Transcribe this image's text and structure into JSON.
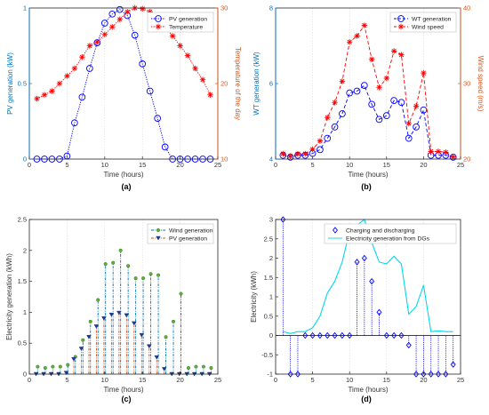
{
  "chart_data": [
    {
      "type": "line",
      "panel": "(a)",
      "xlabel": "Time (hours)",
      "xlim": [
        0,
        25
      ],
      "xticks": [
        0,
        5,
        10,
        15,
        20,
        25
      ],
      "ylabel_left": "PV generation (kW)",
      "ylim_left": [
        0,
        1
      ],
      "yticks_left": [
        0,
        0.5,
        1
      ],
      "ylabel_right": "Temperature of the day",
      "ylim_right": [
        10,
        30
      ],
      "yticks_right": [
        10,
        20,
        30
      ],
      "x": [
        1,
        2,
        3,
        4,
        5,
        6,
        7,
        8,
        9,
        10,
        11,
        12,
        13,
        14,
        15,
        16,
        17,
        18,
        19,
        20,
        21,
        22,
        23,
        24
      ],
      "series": [
        {
          "name": "PV generation",
          "axis": "left",
          "color": "#0000ff",
          "marker": "circle",
          "line": "dotted",
          "values": [
            0,
            0,
            0,
            0,
            0.02,
            0.24,
            0.41,
            0.6,
            0.77,
            0.9,
            0.96,
            0.99,
            0.95,
            0.82,
            0.63,
            0.45,
            0.27,
            0.08,
            0,
            0,
            0,
            0,
            0,
            0
          ]
        },
        {
          "name": "Temperature",
          "axis": "right",
          "color": "#ff0000",
          "marker": "star",
          "line": "dotted",
          "values": [
            18,
            18.5,
            19,
            20,
            21,
            22,
            23.5,
            25,
            25.5,
            26.5,
            27.5,
            28.5,
            29.5,
            30,
            29.9,
            29.5,
            28.5,
            27.5,
            26.3,
            25,
            23.7,
            22,
            20.5,
            18.5
          ]
        }
      ],
      "legend": "top-right",
      "grid": "vertical"
    },
    {
      "type": "line",
      "panel": "(b)",
      "xlabel": "Time (hours)",
      "xlim": [
        0,
        25
      ],
      "xticks": [
        0,
        5,
        10,
        15,
        20,
        25
      ],
      "ylabel_left": "WT generation (kW)",
      "ylim_left": [
        4,
        8
      ],
      "yticks_left": [
        4,
        6,
        8
      ],
      "ylabel_right": "Wind speed (m/s)",
      "ylim_right": [
        20,
        40
      ],
      "yticks_right": [
        20,
        30,
        40
      ],
      "x": [
        1,
        2,
        3,
        4,
        5,
        6,
        7,
        8,
        9,
        10,
        11,
        12,
        13,
        14,
        15,
        16,
        17,
        18,
        19,
        20,
        21,
        22,
        23,
        24
      ],
      "series": [
        {
          "name": "WT generation",
          "axis": "left",
          "color": "#0000ff",
          "marker": "circle",
          "line": "dashed",
          "values": [
            4.1,
            4.05,
            4.1,
            4.1,
            4.15,
            4.25,
            4.55,
            4.85,
            5.2,
            5.75,
            5.8,
            5.95,
            5.45,
            5.05,
            5.15,
            5.55,
            5.5,
            4.55,
            4.85,
            5.3,
            4.1,
            4.1,
            4.1,
            4.05
          ]
        },
        {
          "name": "Wind speed",
          "axis": "right",
          "color": "#ff0000",
          "marker": "star",
          "line": "dashed",
          "values": [
            20.7,
            20.4,
            20.7,
            20.7,
            21.3,
            22.4,
            25.5,
            27.5,
            30.3,
            35.5,
            36.3,
            37.7,
            33.2,
            29.5,
            30.7,
            34.3,
            33.8,
            24.7,
            27,
            31.4,
            21,
            21,
            20.9,
            20.3
          ]
        }
      ],
      "legend": "top-right",
      "grid": "vertical"
    },
    {
      "type": "bar",
      "panel": "(c)",
      "xlabel": "Time (hours)",
      "ylabel": "Electricity generation (kWh)",
      "xlim": [
        0,
        25
      ],
      "xticks": [
        0,
        5,
        10,
        15,
        20,
        25
      ],
      "ylim": [
        0,
        2.5
      ],
      "yticks": [
        0,
        0.5,
        1,
        1.5,
        2,
        2.5
      ],
      "x": [
        1,
        2,
        3,
        4,
        5,
        6,
        7,
        8,
        9,
        10,
        11,
        12,
        13,
        14,
        15,
        16,
        17,
        18,
        19,
        20,
        21,
        22,
        23,
        24
      ],
      "series": [
        {
          "name": "Wind generation",
          "color": "#0072bd",
          "marker": "dot",
          "line": "dashdot",
          "values": [
            0.12,
            0.1,
            0.12,
            0.12,
            0.15,
            0.28,
            0.55,
            0.85,
            1.2,
            1.78,
            1.8,
            2.0,
            1.75,
            1.55,
            1.55,
            1.62,
            1.6,
            0.6,
            0.85,
            1.3,
            0.1,
            0.12,
            0.12,
            0.1
          ]
        },
        {
          "name": "PV generation",
          "color": "#d95319",
          "marker": "triangle",
          "line": "dashdot",
          "values": [
            0,
            0,
            0,
            0,
            0.02,
            0.24,
            0.41,
            0.6,
            0.77,
            0.9,
            0.96,
            0.99,
            0.95,
            0.82,
            0.63,
            0.45,
            0.27,
            0.08,
            0,
            0,
            0,
            0,
            0,
            0
          ]
        }
      ],
      "legend": "top-right",
      "grid": "vertical"
    },
    {
      "type": "line",
      "panel": "(d)",
      "xlabel": "Time (hours)",
      "ylabel": "Electricity (kWh)",
      "xlim": [
        0,
        25
      ],
      "xticks": [
        0,
        5,
        10,
        15,
        20,
        25
      ],
      "ylim": [
        -1,
        3
      ],
      "yticks": [
        -1,
        -0.5,
        0,
        0.5,
        1,
        1.5,
        2,
        2.5,
        3
      ],
      "series": [
        {
          "name": "Charging and discharging",
          "color": "#0000ff",
          "marker": "diamond",
          "line": "stem-dotted",
          "x": [
            1,
            2,
            3,
            4,
            5,
            6,
            7,
            8,
            9,
            10,
            11,
            12,
            13,
            14,
            15,
            16,
            17,
            18,
            19,
            20,
            21,
            22,
            23,
            24
          ],
          "values": [
            3,
            -1,
            -1,
            0,
            0,
            0,
            0,
            0,
            0,
            0,
            1.9,
            2,
            1.4,
            0.6,
            0,
            0,
            0,
            -0.25,
            -1,
            -1,
            -1,
            -1,
            -1,
            -0.75
          ]
        },
        {
          "name": "Electricity generation from DGs",
          "color": "#00d8ee",
          "marker": "none",
          "line": "solid",
          "x": [
            1,
            2,
            3,
            4,
            5,
            6,
            7,
            8,
            9,
            10,
            11,
            12,
            13,
            14,
            15,
            16,
            17,
            18,
            19,
            20,
            21,
            22,
            23,
            24
          ],
          "values": [
            0.1,
            0.05,
            0.1,
            0.1,
            0.2,
            0.5,
            1.1,
            1.4,
            1.9,
            2.7,
            2.85,
            3.0,
            2.4,
            1.9,
            1.85,
            2.05,
            1.85,
            0.55,
            0.75,
            1.3,
            0.1,
            0.12,
            0.1,
            0.1
          ]
        }
      ],
      "legend": "top-right",
      "grid": "vertical"
    }
  ],
  "captions": [
    "(a)",
    "(b)",
    "(c)",
    "(d)"
  ]
}
